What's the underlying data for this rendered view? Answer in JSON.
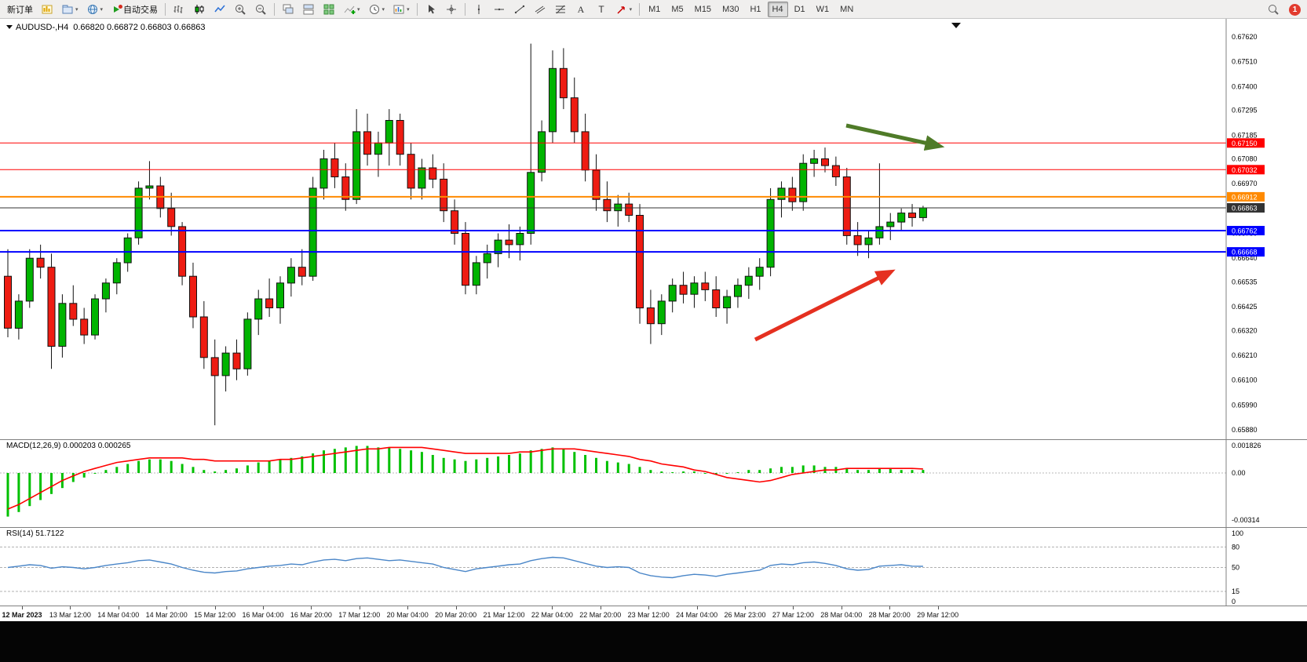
{
  "toolbar": {
    "items": [
      {
        "kind": "text",
        "name": "new-order",
        "label": "新订单"
      },
      {
        "kind": "icon",
        "name": "new-chart",
        "icon": "new-chart"
      },
      {
        "kind": "icon",
        "name": "profiles",
        "icon": "profiles",
        "caret": true
      },
      {
        "kind": "icon",
        "name": "refresh",
        "icon": "globe",
        "caret": true
      },
      {
        "kind": "icon-text",
        "name": "auto-trading",
        "icon": "autotrade",
        "label": "自动交易"
      },
      {
        "kind": "sep"
      },
      {
        "kind": "icon",
        "name": "bar-chart",
        "icon": "bars"
      },
      {
        "kind": "icon",
        "name": "candle-chart",
        "icon": "candles"
      },
      {
        "kind": "icon",
        "name": "line-chart",
        "icon": "line"
      },
      {
        "kind": "icon",
        "name": "zoom-in",
        "icon": "zoom-in"
      },
      {
        "kind": "icon",
        "name": "zoom-out",
        "icon": "zoom-out"
      },
      {
        "kind": "sep"
      },
      {
        "kind": "icon",
        "name": "cascade-windows",
        "icon": "cascade"
      },
      {
        "kind": "icon",
        "name": "tile-windows",
        "icon": "tile"
      },
      {
        "kind": "icon",
        "name": "auto-arrange",
        "icon": "grid-green"
      },
      {
        "kind": "icon",
        "name": "indicators",
        "icon": "indicators",
        "caret": true
      },
      {
        "kind": "icon",
        "name": "periods",
        "icon": "clock",
        "caret": true
      },
      {
        "kind": "icon",
        "name": "templates",
        "icon": "template",
        "caret": true
      },
      {
        "kind": "sep"
      },
      {
        "kind": "icon",
        "name": "cursor",
        "icon": "cursor"
      },
      {
        "kind": "icon",
        "name": "crosshair",
        "icon": "crosshair"
      },
      {
        "kind": "sep"
      },
      {
        "kind": "icon",
        "name": "vertical-line",
        "icon": "vline"
      },
      {
        "kind": "icon",
        "name": "horizontal-line",
        "icon": "hline"
      },
      {
        "kind": "icon",
        "name": "trendline",
        "icon": "trend"
      },
      {
        "kind": "icon",
        "name": "equidistant-channel",
        "icon": "channel"
      },
      {
        "kind": "icon",
        "name": "fibonacci-retracement",
        "icon": "fibo"
      },
      {
        "kind": "icon",
        "name": "text-tool",
        "icon": "text-a"
      },
      {
        "kind": "icon",
        "name": "label-tool",
        "icon": "text-t"
      },
      {
        "kind": "icon",
        "name": "arrows-tool",
        "icon": "arrow-tool",
        "caret": true
      },
      {
        "kind": "sep"
      }
    ],
    "timeframes": [
      "M1",
      "M5",
      "M15",
      "M30",
      "H1",
      "H4",
      "D1",
      "W1",
      "MN"
    ],
    "active_timeframe": "H4",
    "notification_count": "1"
  },
  "chart_data": [
    {
      "type": "candlestick",
      "symbol": "AUDUSD-",
      "timeframe": "H4",
      "title": "AUDUSD-,H4",
      "ohlc_text": "0.66820 0.66872 0.66803 0.66863",
      "current": {
        "open": "0.66820",
        "high": "0.66872",
        "low": "0.66803",
        "close": "0.66863"
      },
      "y_axis_labels": [
        "0.67620",
        "0.67510",
        "0.67400",
        "0.67295",
        "0.67185",
        "0.67080",
        "0.66970",
        "0.66860",
        "0.66750",
        "0.66640",
        "0.66535",
        "0.66425",
        "0.66320",
        "0.66210",
        "0.66100",
        "0.65990",
        "0.65880"
      ],
      "x_axis_labels": [
        "12 Mar 2023",
        "13 Mar 12:00",
        "14 Mar 04:00",
        "14 Mar 20:00",
        "15 Mar 12:00",
        "16 Mar 04:00",
        "16 Mar 20:00",
        "17 Mar 12:00",
        "20 Mar 04:00",
        "20 Mar 20:00",
        "21 Mar 12:00",
        "22 Mar 04:00",
        "22 Mar 20:00",
        "23 Mar 12:00",
        "24 Mar 04:00",
        "26 Mar 23:00",
        "27 Mar 12:00",
        "28 Mar 04:00",
        "28 Mar 20:00",
        "29 Mar 12:00"
      ],
      "lines": [
        {
          "name": "resistance-line-1",
          "label": "0.67150",
          "value": 0.6715,
          "color": "#ff0000",
          "width": 1
        },
        {
          "name": "resistance-line-2",
          "label": "0.67032",
          "value": 0.67032,
          "color": "#ff0000",
          "width": 1
        },
        {
          "name": "pivot-line",
          "label": "0.66912",
          "value": 0.66912,
          "color": "#ff8a00",
          "width": 2
        },
        {
          "name": "current-price-line",
          "label": "0.66863",
          "value": 0.66863,
          "color": "#333333",
          "width": 1
        },
        {
          "name": "support-line-1",
          "label": "0.66762",
          "value": 0.66762,
          "color": "#0000ff",
          "width": 2
        },
        {
          "name": "support-line-2",
          "label": "0.66668",
          "value": 0.66668,
          "color": "#0000ff",
          "width": 2
        }
      ],
      "arrows": [
        {
          "name": "green-trend-arrow",
          "color": "#4f7b28",
          "from": [
            1078,
            136
          ],
          "to": [
            1196,
            162
          ],
          "width": 5
        },
        {
          "name": "red-trend-arrow",
          "color": "#e53020",
          "from": [
            962,
            409
          ],
          "to": [
            1134,
            323
          ],
          "width": 5
        }
      ],
      "candles": [
        [
          0.6656,
          0.6668,
          0.6629,
          0.6633
        ],
        [
          0.6633,
          0.6648,
          0.6628,
          0.6645
        ],
        [
          0.6645,
          0.6668,
          0.6642,
          0.6664
        ],
        [
          0.6664,
          0.667,
          0.6655,
          0.666
        ],
        [
          0.666,
          0.6666,
          0.6615,
          0.6625
        ],
        [
          0.6625,
          0.6648,
          0.662,
          0.6644
        ],
        [
          0.6644,
          0.6652,
          0.6634,
          0.6637
        ],
        [
          0.6637,
          0.6642,
          0.6626,
          0.663
        ],
        [
          0.663,
          0.6648,
          0.6628,
          0.6646
        ],
        [
          0.6646,
          0.6655,
          0.664,
          0.6653
        ],
        [
          0.6653,
          0.6664,
          0.6648,
          0.6662
        ],
        [
          0.6662,
          0.6675,
          0.6658,
          0.6673
        ],
        [
          0.6673,
          0.6698,
          0.667,
          0.6695
        ],
        [
          0.6695,
          0.6707,
          0.669,
          0.6696
        ],
        [
          0.6696,
          0.67,
          0.6682,
          0.6686
        ],
        [
          0.6686,
          0.6693,
          0.6674,
          0.6678
        ],
        [
          0.6678,
          0.668,
          0.6652,
          0.6656
        ],
        [
          0.6656,
          0.6662,
          0.6633,
          0.6638
        ],
        [
          0.6638,
          0.6645,
          0.6615,
          0.662
        ],
        [
          0.662,
          0.6628,
          0.659,
          0.6612
        ],
        [
          0.6612,
          0.6625,
          0.6605,
          0.6622
        ],
        [
          0.6622,
          0.6628,
          0.661,
          0.6615
        ],
        [
          0.6615,
          0.664,
          0.6612,
          0.6637
        ],
        [
          0.6637,
          0.665,
          0.663,
          0.6646
        ],
        [
          0.6646,
          0.6655,
          0.6638,
          0.6642
        ],
        [
          0.6642,
          0.6656,
          0.6635,
          0.6653
        ],
        [
          0.6653,
          0.6664,
          0.6647,
          0.666
        ],
        [
          0.666,
          0.6668,
          0.6652,
          0.6656
        ],
        [
          0.6656,
          0.67,
          0.6654,
          0.6695
        ],
        [
          0.6695,
          0.6712,
          0.669,
          0.6708
        ],
        [
          0.6708,
          0.6715,
          0.6695,
          0.67
        ],
        [
          0.67,
          0.6706,
          0.6685,
          0.669
        ],
        [
          0.669,
          0.673,
          0.6688,
          0.672
        ],
        [
          0.672,
          0.6728,
          0.6705,
          0.671
        ],
        [
          0.671,
          0.672,
          0.67,
          0.6715
        ],
        [
          0.6715,
          0.673,
          0.6705,
          0.6725
        ],
        [
          0.6725,
          0.6728,
          0.6705,
          0.671
        ],
        [
          0.671,
          0.6715,
          0.669,
          0.6695
        ],
        [
          0.6695,
          0.6708,
          0.669,
          0.6704
        ],
        [
          0.6704,
          0.671,
          0.6695,
          0.6699
        ],
        [
          0.6699,
          0.6706,
          0.668,
          0.6685
        ],
        [
          0.6685,
          0.669,
          0.667,
          0.6675
        ],
        [
          0.6675,
          0.668,
          0.6648,
          0.6652
        ],
        [
          0.6652,
          0.6665,
          0.6648,
          0.6662
        ],
        [
          0.6662,
          0.667,
          0.6655,
          0.6666
        ],
        [
          0.6666,
          0.6675,
          0.666,
          0.6672
        ],
        [
          0.6672,
          0.6679,
          0.6664,
          0.667
        ],
        [
          0.667,
          0.6678,
          0.6663,
          0.6675
        ],
        [
          0.6675,
          0.6759,
          0.667,
          0.6702
        ],
        [
          0.6702,
          0.6725,
          0.6698,
          0.672
        ],
        [
          0.672,
          0.6756,
          0.6715,
          0.6748
        ],
        [
          0.6748,
          0.6757,
          0.673,
          0.6735
        ],
        [
          0.6735,
          0.6744,
          0.6715,
          0.672
        ],
        [
          0.672,
          0.6728,
          0.6698,
          0.6703
        ],
        [
          0.6703,
          0.671,
          0.6685,
          0.669
        ],
        [
          0.669,
          0.6698,
          0.668,
          0.6685
        ],
        [
          0.6685,
          0.6692,
          0.6678,
          0.6688
        ],
        [
          0.6688,
          0.6693,
          0.668,
          0.6683
        ],
        [
          0.6683,
          0.6688,
          0.6635,
          0.6642
        ],
        [
          0.6642,
          0.665,
          0.6626,
          0.6635
        ],
        [
          0.6635,
          0.6648,
          0.663,
          0.6645
        ],
        [
          0.6645,
          0.6655,
          0.664,
          0.6652
        ],
        [
          0.6652,
          0.6658,
          0.6644,
          0.6648
        ],
        [
          0.6648,
          0.6656,
          0.6642,
          0.6653
        ],
        [
          0.6653,
          0.6658,
          0.6645,
          0.665
        ],
        [
          0.665,
          0.6656,
          0.6638,
          0.6642
        ],
        [
          0.6642,
          0.665,
          0.6635,
          0.6647
        ],
        [
          0.6647,
          0.6655,
          0.6642,
          0.6652
        ],
        [
          0.6652,
          0.666,
          0.6646,
          0.6656
        ],
        [
          0.6656,
          0.6664,
          0.665,
          0.666
        ],
        [
          0.666,
          0.6695,
          0.6656,
          0.669
        ],
        [
          0.669,
          0.6698,
          0.6682,
          0.6695
        ],
        [
          0.6695,
          0.67,
          0.6685,
          0.6689
        ],
        [
          0.6689,
          0.671,
          0.6685,
          0.6706
        ],
        [
          0.6706,
          0.6712,
          0.67,
          0.6708
        ],
        [
          0.6708,
          0.6713,
          0.6702,
          0.6705
        ],
        [
          0.6705,
          0.6709,
          0.6696,
          0.67
        ],
        [
          0.67,
          0.6704,
          0.667,
          0.6674
        ],
        [
          0.6674,
          0.668,
          0.6665,
          0.667
        ],
        [
          0.667,
          0.6676,
          0.6664,
          0.6673
        ],
        [
          0.6673,
          0.6706,
          0.667,
          0.6678
        ],
        [
          0.6678,
          0.6684,
          0.6672,
          0.668
        ],
        [
          0.668,
          0.6686,
          0.6676,
          0.6684
        ],
        [
          0.6684,
          0.6688,
          0.6678,
          0.6682
        ],
        [
          0.6682,
          0.66872,
          0.66803,
          0.66863
        ]
      ],
      "colors": {
        "bull": "#00b400",
        "bear": "#ee1c12",
        "wick": "#111111"
      }
    },
    {
      "type": "bar",
      "name": "MACD(12,26,9)",
      "label": "MACD(12,26,9) 0.000203 0.000265",
      "current_macd": "0.000203",
      "current_signal": "0.000265",
      "y_axis_labels": [
        "0.001826",
        "0.00",
        "-0.00314"
      ],
      "histogram_color": "#00c000",
      "signal_color": "#ff0000",
      "histogram": [
        -0.0029,
        -0.0026,
        -0.0022,
        -0.0018,
        -0.0014,
        -0.001,
        -0.0006,
        -0.0003,
        0.0,
        0.0002,
        0.0004,
        0.0006,
        0.0008,
        0.0009,
        0.0009,
        0.0008,
        0.0006,
        0.0004,
        0.0002,
        0.0001,
        0.0002,
        0.0003,
        0.0005,
        0.0007,
        0.0008,
        0.0009,
        0.001,
        0.0011,
        0.0013,
        0.0015,
        0.0016,
        0.0017,
        0.0018,
        0.0018,
        0.0017,
        0.0017,
        0.0016,
        0.0015,
        0.0014,
        0.0012,
        0.001,
        0.0009,
        0.0008,
        0.0009,
        0.001,
        0.0011,
        0.0012,
        0.0013,
        0.0015,
        0.0016,
        0.0017,
        0.0016,
        0.0014,
        0.0012,
        0.001,
        0.0008,
        0.0007,
        0.0006,
        0.0004,
        0.0002,
        0.0001,
        5e-05,
        0.0001,
        0.0001,
        -5e-05,
        -0.0001,
        -5e-05,
        5e-05,
        0.0002,
        0.0002,
        0.0003,
        0.0004,
        0.0004,
        0.0005,
        0.0005,
        0.0004,
        0.0004,
        0.0003,
        0.0002,
        0.0002,
        0.0003,
        0.0003,
        0.0002,
        0.0002,
        0.000203
      ],
      "signal": [
        -0.0024,
        -0.0021,
        -0.0017,
        -0.0013,
        -0.0009,
        -0.0005,
        -0.0002,
        0.0001,
        0.0003,
        0.0005,
        0.0007,
        0.0008,
        0.0009,
        0.001,
        0.001,
        0.001,
        0.001,
        0.0009,
        0.0009,
        0.0008,
        0.0008,
        0.0008,
        0.0008,
        0.0008,
        0.0008,
        0.0009,
        0.0009,
        0.001,
        0.0011,
        0.0012,
        0.0013,
        0.0014,
        0.0015,
        0.0016,
        0.0016,
        0.0017,
        0.0017,
        0.0017,
        0.0017,
        0.0016,
        0.0015,
        0.0014,
        0.0013,
        0.0013,
        0.0013,
        0.0013,
        0.0013,
        0.0014,
        0.0014,
        0.0015,
        0.0016,
        0.0016,
        0.0016,
        0.0015,
        0.0014,
        0.0013,
        0.0012,
        0.0011,
        0.0009,
        0.0008,
        0.0006,
        0.0005,
        0.0004,
        0.0002,
        0.0001,
        -0.0001,
        -0.0003,
        -0.0004,
        -0.0005,
        -0.0006,
        -0.0005,
        -0.0003,
        -0.0001,
        0.0,
        0.0001,
        0.0002,
        0.0002,
        0.0003,
        0.0003,
        0.0003,
        0.0003,
        0.0003,
        0.0003,
        0.0003,
        0.000265
      ]
    },
    {
      "type": "line",
      "name": "RSI(14)",
      "label": "RSI(14) 51.7122",
      "current_value": "51.7122",
      "line_color": "#4a86c8",
      "y_axis_labels": [
        "100",
        "80",
        "50",
        "15",
        "0"
      ],
      "levels": [
        80,
        50,
        15
      ],
      "values": [
        50,
        52,
        54,
        53,
        49,
        51,
        50,
        48,
        50,
        53,
        55,
        57,
        60,
        61,
        58,
        55,
        50,
        46,
        43,
        42,
        44,
        45,
        48,
        50,
        52,
        53,
        55,
        54,
        58,
        61,
        62,
        60,
        63,
        64,
        62,
        60,
        61,
        59,
        57,
        55,
        50,
        47,
        44,
        48,
        50,
        52,
        54,
        55,
        60,
        63,
        65,
        64,
        60,
        56,
        52,
        50,
        51,
        50,
        42,
        38,
        36,
        35,
        38,
        40,
        39,
        37,
        40,
        42,
        44,
        46,
        53,
        55,
        54,
        57,
        58,
        56,
        53,
        48,
        46,
        47,
        52,
        53,
        54,
        52,
        51.71
      ]
    }
  ]
}
